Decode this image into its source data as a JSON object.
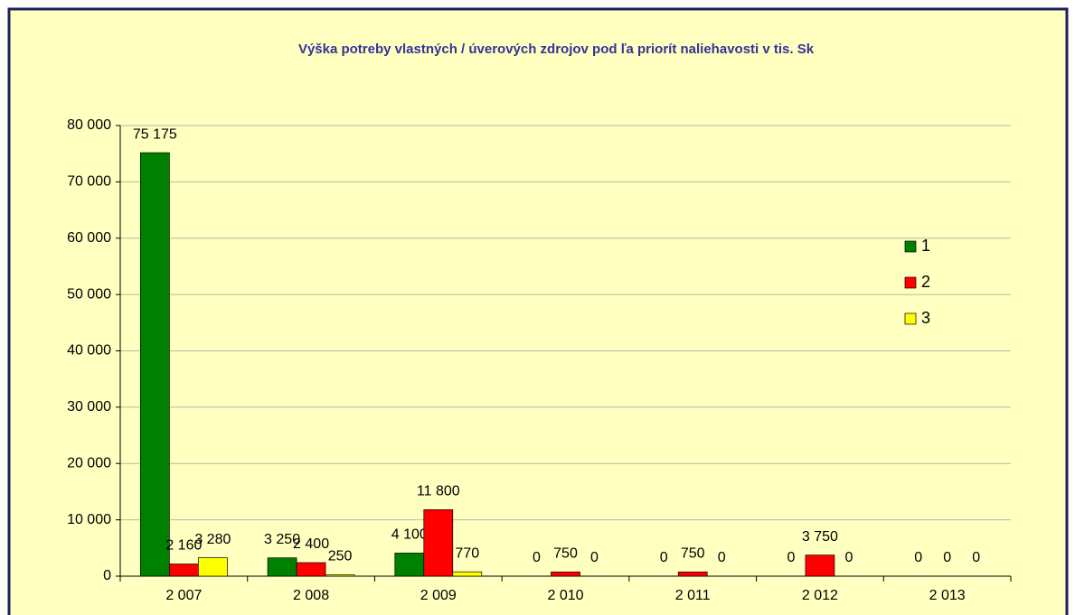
{
  "chart_data": {
    "type": "bar",
    "title": "Výška potreby vlastných / úverových zdrojov pod ľa priorít naliehavosti v tis. Sk",
    "categories": [
      "2 007",
      "2 008",
      "2 009",
      "2 010",
      "2 011",
      "2 012",
      "2 013"
    ],
    "series": [
      {
        "name": "1",
        "color": "#008000",
        "values": [
          75175,
          3250,
          4100,
          0,
          0,
          0,
          0
        ],
        "value_labels": [
          "75 175",
          "3 250",
          "4 100",
          "0",
          "0",
          "0",
          "0"
        ]
      },
      {
        "name": "2",
        "color": "#ff0000",
        "values": [
          2160,
          2400,
          11800,
          750,
          750,
          3750,
          0
        ],
        "value_labels": [
          "2 160",
          "2 400",
          "11 800",
          "750",
          "750",
          "3 750",
          "0"
        ]
      },
      {
        "name": "3",
        "color": "#ffff00",
        "values": [
          3280,
          250,
          770,
          0,
          0,
          0,
          0
        ],
        "value_labels": [
          "3 280",
          "250",
          "770",
          "0",
          "0",
          "0",
          "0"
        ]
      }
    ],
    "ylim": [
      0,
      80000
    ],
    "yticks": [
      0,
      {
        "value": 10000,
        "label": "10 000"
      },
      {
        "value": 20000,
        "label": "20 000"
      },
      {
        "value": 30000,
        "label": "30 000"
      },
      {
        "value": 40000,
        "label": "40 000"
      },
      {
        "value": 50000,
        "label": "50 000"
      },
      {
        "value": 60000,
        "label": "60 000"
      },
      {
        "value": 70000,
        "label": "70 000"
      },
      {
        "value": 80000,
        "label": "80 000"
      }
    ],
    "grid": true,
    "legend": "right"
  }
}
